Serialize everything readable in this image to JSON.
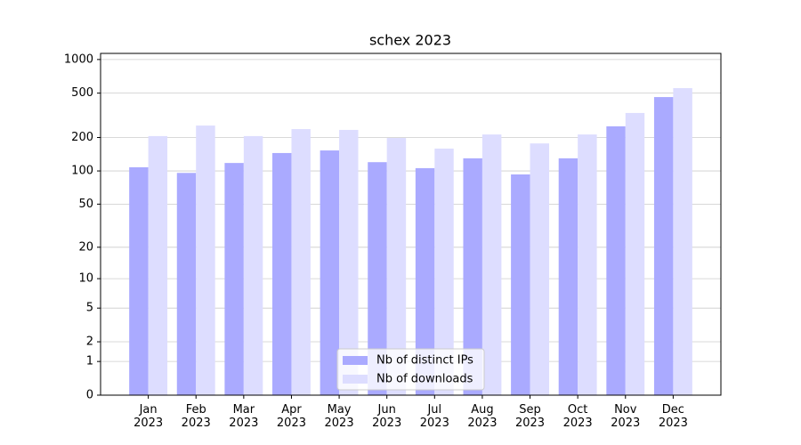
{
  "chart_data": {
    "type": "bar",
    "title": "schex 2023",
    "categories": [
      "Jan\n2023",
      "Feb\n2023",
      "Mar\n2023",
      "Apr\n2023",
      "May\n2023",
      "Jun\n2023",
      "Jul\n2023",
      "Aug\n2023",
      "Sep\n2023",
      "Oct\n2023",
      "Nov\n2023",
      "Dec\n2023"
    ],
    "series": [
      {
        "name": "Nb of distinct IPs",
        "color": "#aaaaff",
        "values": [
          108,
          96,
          118,
          145,
          153,
          120,
          106,
          130,
          93,
          130,
          252,
          461
        ]
      },
      {
        "name": "Nb of downloads",
        "color": "#ddddff",
        "values": [
          206,
          256,
          206,
          238,
          234,
          198,
          159,
          213,
          177,
          213,
          332,
          554
        ]
      }
    ],
    "yscale": "log1p",
    "ylim": [
      0,
      1134
    ],
    "yticks": [
      0,
      1,
      2,
      5,
      10,
      20,
      50,
      100,
      200,
      500,
      1000
    ],
    "grid": true,
    "legend": "lower center"
  }
}
